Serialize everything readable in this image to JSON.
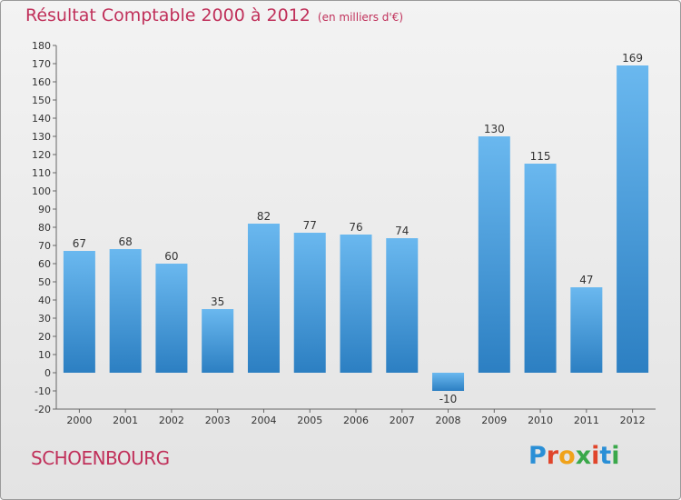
{
  "header": {
    "title": "Résultat Comptable 2000 à 2012",
    "subtitle": "(en milliers d'€)"
  },
  "footer": {
    "place": "SCHOENBOURG",
    "brand": "Proxiti",
    "brand_letters": [
      {
        "char": "P",
        "color": "#2a8fd6"
      },
      {
        "char": "r",
        "color": "#e0452b"
      },
      {
        "char": "o",
        "color": "#f0a21a"
      },
      {
        "char": "x",
        "color": "#3aa84a"
      },
      {
        "char": "i",
        "color": "#e0452b"
      },
      {
        "char": "t",
        "color": "#2a8fd6"
      },
      {
        "char": "i",
        "color": "#3aa84a"
      }
    ]
  },
  "colors": {
    "bar_top": "#6ab8ef",
    "bar_bottom": "#2c7fc2",
    "accent": "#c0305a"
  },
  "chart_data": {
    "type": "bar",
    "title": "Résultat Comptable 2000 à 2012",
    "subtitle": "(en milliers d'€)",
    "xlabel": "",
    "ylabel": "",
    "categories": [
      "2000",
      "2001",
      "2002",
      "2003",
      "2004",
      "2005",
      "2006",
      "2007",
      "2008",
      "2009",
      "2010",
      "2011",
      "2012"
    ],
    "values": [
      67,
      68,
      60,
      35,
      82,
      77,
      76,
      74,
      -10,
      130,
      115,
      47,
      169
    ],
    "ylim": [
      -20,
      180
    ],
    "ytick_step": 10,
    "grid": false,
    "legend": "none"
  }
}
